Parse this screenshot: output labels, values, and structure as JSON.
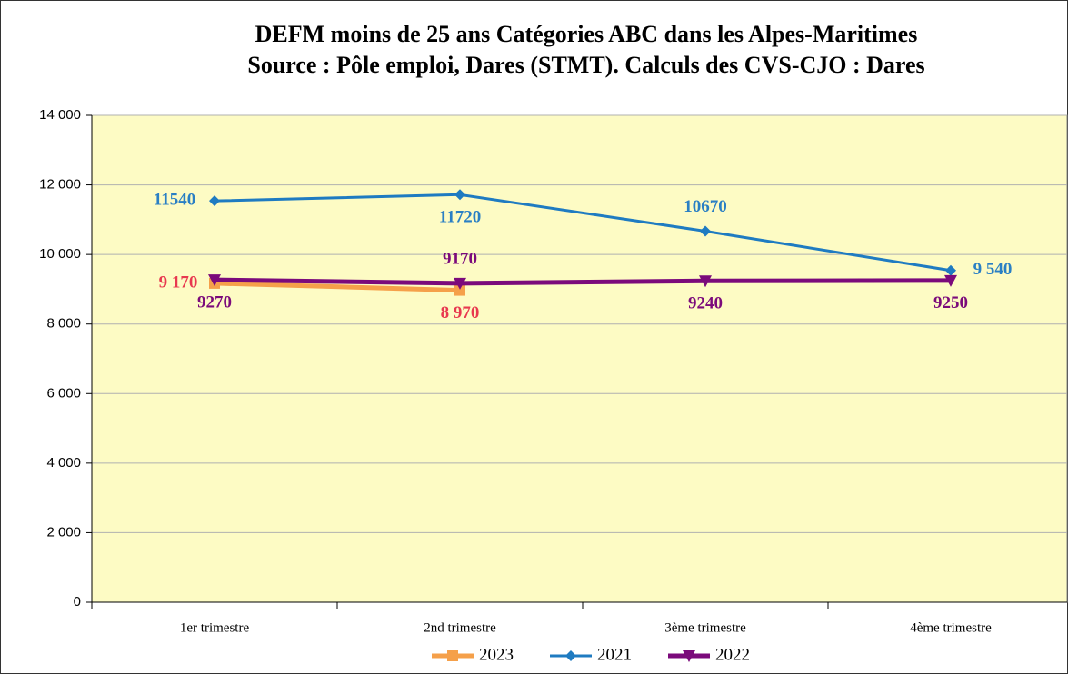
{
  "chart_data": {
    "type": "line",
    "title": "DEFM moins de 25 ans  Catégories ABC dans les Alpes-Maritimes",
    "subtitle": "Source : Pôle emploi, Dares (STMT). Calculs des CVS-CJO : Dares",
    "categories": [
      "1er trimestre",
      "2nd  trimestre",
      "3ème trimestre",
      "4ème trimestre"
    ],
    "series": [
      {
        "name": "2023",
        "color": "#f5a04a",
        "label_color": "#e8384f",
        "marker": "square",
        "values": [
          9170,
          8970,
          null,
          null
        ],
        "value_labels": [
          "9 170",
          "8 970",
          null,
          null
        ]
      },
      {
        "name": "2021",
        "color": "#1f7bc1",
        "label_color": "#2a7fc4",
        "marker": "diamond",
        "values": [
          11540,
          11720,
          10670,
          9540
        ],
        "value_labels": [
          "11540",
          "11720",
          "10670",
          "9 540"
        ]
      },
      {
        "name": "2022",
        "color": "#7b0a7b",
        "label_color": "#7b0a7b",
        "marker": "triangle-down",
        "values": [
          9270,
          9170,
          9240,
          9250
        ],
        "value_labels": [
          "9270",
          "9170",
          "9240",
          "9250"
        ]
      }
    ],
    "ylim": [
      0,
      14000
    ],
    "yticks": [
      0,
      {
        "value": 2000,
        "label": "2 000"
      },
      {
        "value": 4000,
        "label": "4 000"
      },
      {
        "value": 6000,
        "label": "6 000"
      },
      {
        "value": 8000,
        "label": "8 000"
      },
      {
        "value": 10000,
        "label": "10 000"
      },
      {
        "value": 12000,
        "label": "12 000"
      },
      {
        "value": 14000,
        "label": "14 000"
      }
    ],
    "grid": true
  }
}
